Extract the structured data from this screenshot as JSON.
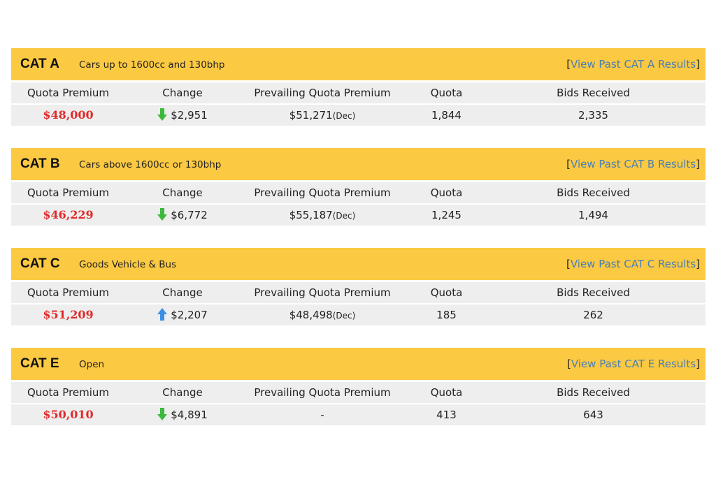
{
  "categories": [
    {
      "title": "CAT A",
      "desc": "Cars up to 1600cc and 130bhp",
      "link": "View Past CAT A Results",
      "headers": [
        "Quota Premium",
        "Change",
        "Prevailing Quota Premium",
        "Quota",
        "Bids Received"
      ],
      "premium": "$48,000",
      "change_dir": "down",
      "change": "$2,951",
      "prevailing": "$51,271",
      "prevailing_month": "(Dec)",
      "quota": "1,844",
      "bids": "2,335"
    },
    {
      "title": "CAT B",
      "desc": "Cars above 1600cc or 130bhp",
      "link": "View Past CAT B Results",
      "headers": [
        "Quota Premium",
        "Change",
        "Prevailing Quota Premium",
        "Quota",
        "Bids Received"
      ],
      "premium": "$46,229",
      "change_dir": "down",
      "change": "$6,772",
      "prevailing": "$55,187",
      "prevailing_month": "(Dec)",
      "quota": "1,245",
      "bids": "1,494"
    },
    {
      "title": "CAT C",
      "desc": "Goods Vehicle & Bus",
      "link": "View Past CAT C Results",
      "headers": [
        "Quota Premium",
        "Change",
        "Prevailing Quota Premium",
        "Quota",
        "Bids Received"
      ],
      "premium": "$51,209",
      "change_dir": "up",
      "change": "$2,207",
      "prevailing": "$48,498",
      "prevailing_month": "(Dec)",
      "quota": "185",
      "bids": "262"
    },
    {
      "title": "CAT E",
      "desc": "Open",
      "link": "View Past CAT E Results",
      "headers": [
        "Quota Premium",
        "Change",
        "Prevailing Quota Premium",
        "Quota",
        "Bids Received"
      ],
      "premium": "$50,010",
      "change_dir": "down",
      "change": "$4,891",
      "prevailing": "-",
      "prevailing_month": "",
      "quota": "413",
      "bids": "643"
    }
  ],
  "colors": {
    "header_bg": "#fbc942",
    "row_bg": "#eeeeee",
    "premium": "#e22a2a",
    "link": "#4a7fb5",
    "arrow_down": "#3cb93c",
    "arrow_up": "#3a8ee6"
  },
  "icons": {
    "down": "arrow-down-icon",
    "up": "arrow-up-icon"
  }
}
